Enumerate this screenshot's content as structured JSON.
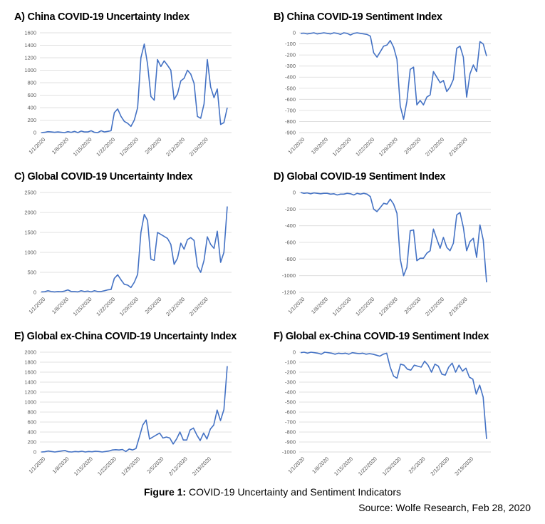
{
  "chart_data": [
    {
      "type": "line",
      "panel_letter": "A)",
      "title": "China COVID-19 Uncertainty Index",
      "ylim": [
        0,
        1600
      ],
      "yticks": [
        0,
        200,
        400,
        600,
        800,
        1000,
        1200,
        1400,
        1600
      ],
      "x_tick_labels": [
        "1/1/2020",
        "1/8/2020",
        "1/15/2020",
        "1/22/2020",
        "1/29/2020",
        "2/5/2020",
        "2/12/2020",
        "2/19/2020"
      ],
      "series": [
        {
          "color": "#4472c4",
          "values": [
            0,
            5,
            15,
            10,
            5,
            10,
            5,
            0,
            15,
            5,
            20,
            0,
            25,
            10,
            10,
            30,
            5,
            0,
            30,
            10,
            20,
            30,
            320,
            380,
            260,
            180,
            150,
            100,
            200,
            400,
            1200,
            1420,
            1100,
            580,
            520,
            1170,
            1060,
            1150,
            1080,
            1000,
            530,
            620,
            830,
            870,
            1000,
            940,
            790,
            260,
            230,
            460,
            1170,
            730,
            560,
            700,
            130,
            160,
            400
          ]
        }
      ],
      "grid": true,
      "legend": "none"
    },
    {
      "type": "line",
      "panel_letter": "B)",
      "title": "China COVID-19 Sentiment Index",
      "ylim": [
        -900,
        0
      ],
      "yticks": [
        0,
        -100,
        -200,
        -300,
        -400,
        -500,
        -600,
        -700,
        -800,
        -900
      ],
      "x_tick_labels": [
        "1/1/2020",
        "1/8/2020",
        "1/15/2020",
        "1/22/2020",
        "1/29/2020",
        "2/5/2020",
        "2/12/2020",
        "2/19/2020"
      ],
      "series": [
        {
          "color": "#4472c4",
          "values": [
            -5,
            -3,
            -10,
            -5,
            0,
            -10,
            -5,
            0,
            -5,
            -10,
            0,
            -5,
            -15,
            0,
            -5,
            -20,
            -5,
            0,
            -5,
            -10,
            -15,
            -30,
            -180,
            -220,
            -170,
            -120,
            -110,
            -70,
            -130,
            -240,
            -660,
            -780,
            -620,
            -330,
            -310,
            -650,
            -610,
            -650,
            -580,
            -560,
            -350,
            -400,
            -450,
            -430,
            -530,
            -490,
            -420,
            -140,
            -120,
            -220,
            -580,
            -370,
            -290,
            -350,
            -80,
            -100,
            -210
          ]
        }
      ],
      "grid": true,
      "legend": "none"
    },
    {
      "type": "line",
      "panel_letter": "C)",
      "title": "Global COVID-19 Uncertainty Index",
      "ylim": [
        0,
        2500
      ],
      "yticks": [
        0,
        500,
        1000,
        1500,
        2000,
        2500
      ],
      "x_tick_labels": [
        "1/1/2020",
        "1/8/2020",
        "1/15/2020",
        "1/22/2020",
        "1/29/2020",
        "2/5/2020",
        "2/12/2020",
        "2/19/2020"
      ],
      "series": [
        {
          "color": "#4472c4",
          "values": [
            10,
            15,
            40,
            20,
            10,
            20,
            15,
            30,
            60,
            20,
            20,
            10,
            40,
            20,
            30,
            10,
            40,
            20,
            20,
            40,
            60,
            70,
            350,
            440,
            310,
            200,
            180,
            120,
            250,
            450,
            1500,
            1950,
            1800,
            830,
            800,
            1500,
            1450,
            1400,
            1350,
            1200,
            700,
            850,
            1230,
            1080,
            1320,
            1370,
            1300,
            650,
            500,
            800,
            1390,
            1200,
            1100,
            1530,
            750,
            1000,
            2150
          ]
        }
      ],
      "grid": true,
      "legend": "none"
    },
    {
      "type": "line",
      "panel_letter": "D)",
      "title": "Global COVID-19 Sentiment Index",
      "ylim": [
        -1200,
        0
      ],
      "yticks": [
        0,
        -200,
        -400,
        -600,
        -800,
        -1000,
        -1200
      ],
      "x_tick_labels": [
        "1/1/2020",
        "1/8/2020",
        "1/15/2020",
        "1/22/2020",
        "1/29/2020",
        "2/5/2020",
        "2/12/2020",
        "2/19/2020"
      ],
      "series": [
        {
          "color": "#4472c4",
          "values": [
            0,
            -10,
            -5,
            -15,
            -5,
            -10,
            -15,
            -10,
            -10,
            -20,
            -15,
            -30,
            -20,
            -20,
            -10,
            -15,
            -30,
            -10,
            -20,
            -10,
            -20,
            -50,
            -200,
            -230,
            -180,
            -130,
            -140,
            -80,
            -140,
            -250,
            -800,
            -1000,
            -900,
            -460,
            -450,
            -820,
            -790,
            -790,
            -730,
            -700,
            -440,
            -560,
            -670,
            -540,
            -660,
            -700,
            -610,
            -270,
            -240,
            -420,
            -700,
            -590,
            -550,
            -780,
            -390,
            -570,
            -1080
          ]
        }
      ],
      "grid": true,
      "legend": "none"
    },
    {
      "type": "line",
      "panel_letter": "E)",
      "title": "Global ex-China COVID-19 Uncertainty Index",
      "ylim": [
        0,
        2000
      ],
      "yticks": [
        0,
        200,
        400,
        600,
        800,
        1000,
        1200,
        1400,
        1600,
        1800,
        2000
      ],
      "x_tick_labels": [
        "1/1/2020",
        "1/8/2020",
        "1/15/2020",
        "1/22/2020",
        "1/29/2020",
        "2/5/2020",
        "2/12/2020",
        "2/19/2020"
      ],
      "series": [
        {
          "color": "#4472c4",
          "values": [
            0,
            5,
            20,
            10,
            0,
            10,
            20,
            30,
            5,
            0,
            10,
            5,
            15,
            0,
            10,
            5,
            15,
            10,
            0,
            10,
            20,
            40,
            45,
            40,
            50,
            10,
            60,
            40,
            70,
            300,
            540,
            640,
            260,
            300,
            340,
            380,
            280,
            300,
            280,
            160,
            260,
            400,
            240,
            240,
            440,
            480,
            340,
            230,
            380,
            260,
            460,
            540,
            840,
            630,
            850,
            1720
          ]
        }
      ],
      "grid": true,
      "legend": "none"
    },
    {
      "type": "line",
      "panel_letter": "F)",
      "title": "Global ex-China COVID-19 Sentiment Index",
      "ylim": [
        -1000,
        0
      ],
      "yticks": [
        0,
        -100,
        -200,
        -300,
        -400,
        -500,
        -600,
        -700,
        -800,
        -900,
        -1000
      ],
      "x_tick_labels": [
        "1/1/2020",
        "1/8/2020",
        "1/15/2020",
        "1/22/2020",
        "1/29/2020",
        "2/5/2020",
        "2/12/2020",
        "2/19/2020"
      ],
      "series": [
        {
          "color": "#4472c4",
          "values": [
            -5,
            0,
            -10,
            0,
            -5,
            -10,
            -20,
            0,
            -5,
            -10,
            -20,
            -10,
            -15,
            -10,
            -20,
            -5,
            -10,
            -15,
            -10,
            -20,
            -15,
            -20,
            -30,
            -40,
            -20,
            -10,
            -150,
            -240,
            -260,
            -120,
            -130,
            -170,
            -180,
            -130,
            -140,
            -150,
            -90,
            -130,
            -200,
            -120,
            -140,
            -220,
            -230,
            -150,
            -110,
            -200,
            -130,
            -190,
            -160,
            -250,
            -270,
            -420,
            -330,
            -450,
            -870
          ]
        }
      ],
      "grid": true,
      "legend": "none"
    }
  ],
  "figure_caption": {
    "label": "Figure 1:",
    "text": " COVID-19 Uncertainty and Sentiment Indicators"
  },
  "source": "Source: Wolfe Research, Feb 28, 2020"
}
